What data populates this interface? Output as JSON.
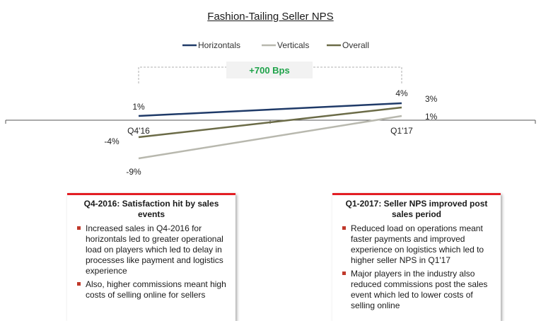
{
  "chart_data": {
    "type": "line",
    "title": "Fashion-Tailing Seller NPS",
    "categories": [
      "Q4'16",
      "Q1'17"
    ],
    "series": [
      {
        "name": "Horizontals",
        "values": [
          1,
          4
        ],
        "color": "#1f3a68",
        "labels": [
          "1%",
          "4%"
        ]
      },
      {
        "name": "Verticals",
        "values": [
          -9,
          1
        ],
        "color": "#b8b8ae",
        "labels": [
          "-9%",
          "1%"
        ]
      },
      {
        "name": "Overall",
        "values": [
          -4,
          3
        ],
        "color": "#6b6b47",
        "labels": [
          "-4%",
          "3%"
        ]
      }
    ],
    "annotation": "+700 Bps",
    "annotation_color": "#1fa34a",
    "legend_position": "top-center",
    "grid": false
  },
  "boxes": [
    {
      "heading": "Q4-2016: Satisfaction hit by sales events",
      "bullets": [
        "Increased sales in Q4-2016 for horizontals led to greater operational load on players which led to delay in processes like payment and logistics experience",
        "Also, higher commissions meant high costs of selling online for sellers"
      ]
    },
    {
      "heading": "Q1-2017: Seller NPS improved post sales period",
      "bullets": [
        "Reduced load on operations meant faster payments and improved experience on logistics which led to higher seller NPS in Q1'17",
        "Major players in the industry also reduced commissions post the sales event which led to lower costs of selling online"
      ]
    }
  ]
}
